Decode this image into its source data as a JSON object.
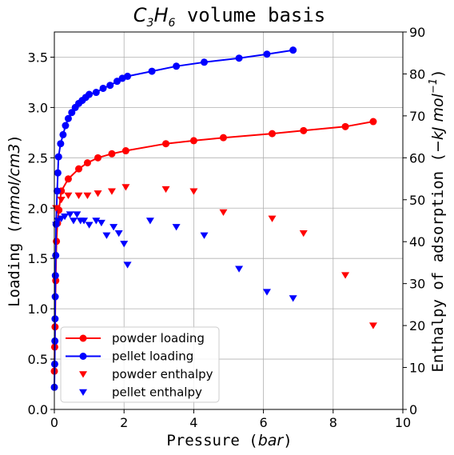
{
  "chart_data": {
    "type": "line",
    "title": "C3H6 volume basis",
    "title_parts": {
      "a": "C",
      "a_sub": "3",
      "b": "H",
      "b_sub": "6",
      "rest": " volume basis"
    },
    "xlabel": "Pressure (bar)",
    "xlabel_parts": {
      "text": "Pressure (",
      "italic": "bar",
      "close": ")"
    },
    "ylabel": "Loading (mmol/cm3)",
    "ylabel_parts": {
      "text": "Loading (",
      "italic": "mmol/cm3",
      "close": ")"
    },
    "y2label": "Enthalpy of adsorption (−kJ mol−1)",
    "y2label_parts": {
      "text": "Enthalpy of adsorption (",
      "italic": "−kJ mol",
      "sup": "−1",
      "close": ")"
    },
    "xlim": [
      0,
      10
    ],
    "ylim": [
      0,
      3.75
    ],
    "y2lim": [
      0,
      90
    ],
    "xticks": [
      0,
      2,
      4,
      6,
      8,
      10
    ],
    "yticks": [
      0.0,
      0.5,
      1.0,
      1.5,
      2.0,
      2.5,
      3.0,
      3.5
    ],
    "y2ticks": [
      0,
      10,
      20,
      30,
      40,
      50,
      60,
      70,
      80,
      90
    ],
    "ytick_labels": [
      "0.0",
      "0.5",
      "1.0",
      "1.5",
      "2.0",
      "2.5",
      "3.0",
      "3.5"
    ],
    "grid": true,
    "legend_position": "lower-left",
    "series": [
      {
        "name": "powder loading",
        "kind": "line-marker",
        "axis": "left",
        "color": "#ff0000",
        "x": [
          0.0,
          0.01,
          0.02,
          0.04,
          0.06,
          0.09,
          0.13,
          0.2,
          0.4,
          0.7,
          0.95,
          1.25,
          1.65,
          2.05,
          3.2,
          4.0,
          4.85,
          6.25,
          7.15,
          8.35,
          9.15
        ],
        "y": [
          0.38,
          0.62,
          0.82,
          1.28,
          1.67,
          1.85,
          1.98,
          2.17,
          2.29,
          2.39,
          2.45,
          2.5,
          2.54,
          2.57,
          2.64,
          2.67,
          2.7,
          2.74,
          2.77,
          2.81,
          2.86
        ]
      },
      {
        "name": "pellet loading",
        "kind": "line-marker",
        "axis": "left",
        "color": "#0000ff",
        "x": [
          0.0,
          0.01,
          0.015,
          0.02,
          0.025,
          0.03,
          0.04,
          0.05,
          0.08,
          0.1,
          0.12,
          0.18,
          0.25,
          0.32,
          0.4,
          0.5,
          0.6,
          0.7,
          0.8,
          0.9,
          1.0,
          1.2,
          1.4,
          1.6,
          1.8,
          1.95,
          2.1,
          2.8,
          3.5,
          4.3,
          5.3,
          6.1,
          6.85
        ],
        "y": [
          0.22,
          0.45,
          0.68,
          0.9,
          1.12,
          1.33,
          1.53,
          1.84,
          2.17,
          2.35,
          2.51,
          2.64,
          2.73,
          2.82,
          2.89,
          2.95,
          3.0,
          3.04,
          3.07,
          3.1,
          3.13,
          3.15,
          3.19,
          3.22,
          3.26,
          3.29,
          3.31,
          3.36,
          3.41,
          3.45,
          3.49,
          3.53,
          3.57
        ]
      },
      {
        "name": "powder enthalpy",
        "kind": "marker",
        "axis": "right",
        "color": "#ff0000",
        "x": [
          0.05,
          0.2,
          0.4,
          0.7,
          0.95,
          1.25,
          1.65,
          2.05,
          3.2,
          4.0,
          4.85,
          6.25,
          7.15,
          8.35,
          9.15
        ],
        "y": [
          48,
          50,
          51,
          51,
          51,
          51.5,
          52,
          53,
          52.5,
          52,
          47,
          45.5,
          42,
          32,
          20
        ]
      },
      {
        "name": "pellet enthalpy",
        "kind": "marker",
        "axis": "right",
        "color": "#0000ff",
        "x": [
          0.05,
          0.1,
          0.2,
          0.3,
          0.45,
          0.55,
          0.65,
          0.75,
          0.85,
          1.0,
          1.2,
          1.35,
          1.5,
          1.7,
          1.85,
          2.0,
          2.1,
          2.75,
          3.5,
          4.3,
          5.3,
          6.1,
          6.85
        ],
        "y": [
          44,
          45,
          45.5,
          46,
          46.5,
          45,
          46.5,
          45,
          45,
          44,
          45,
          44.5,
          41.5,
          43.5,
          42,
          39.5,
          34.5,
          45,
          43.5,
          41.5,
          33.5,
          28,
          26.5
        ]
      }
    ]
  }
}
